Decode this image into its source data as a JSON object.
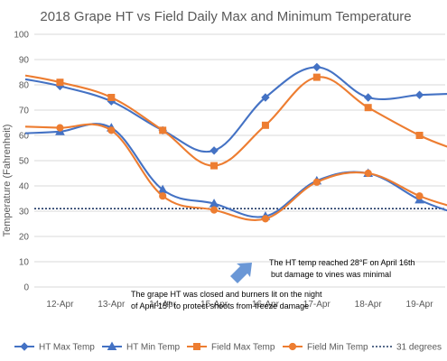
{
  "chart_data": {
    "type": "line",
    "title": "2018 Grape HT vs Field Daily Max and Minimum Temperature",
    "ylabel": "Temperature (Fahrenheit)",
    "xlabel": "",
    "ylim": [
      0,
      100
    ],
    "yticks": [
      0,
      10,
      20,
      30,
      40,
      50,
      60,
      70,
      80,
      90,
      100
    ],
    "grid": true,
    "legend": "bottom",
    "categories": [
      "12-Apr",
      "13-Apr",
      "14-Apr",
      "15-Apr",
      "16-Apr",
      "17-Apr",
      "18-Apr",
      "19-Apr"
    ],
    "series": [
      {
        "name": "HT Max Temp",
        "color": "#4472C4",
        "marker": "diamond",
        "values": [
          79.5,
          73.5,
          62,
          54,
          75,
          87,
          75,
          76
        ]
      },
      {
        "name": "HT Min Temp",
        "color": "#4472C4",
        "marker": "triangle",
        "values": [
          61.5,
          63,
          38.5,
          33,
          28,
          42,
          45,
          34.5
        ]
      },
      {
        "name": "Field Max Temp",
        "color": "#ED7D31",
        "marker": "square",
        "values": [
          81,
          75,
          62,
          48,
          64,
          83,
          71,
          60
        ]
      },
      {
        "name": "Field Min Temp",
        "color": "#ED7D31",
        "marker": "circle",
        "values": [
          63,
          62,
          36,
          30.5,
          27,
          41.5,
          45,
          36
        ]
      }
    ],
    "reference_line": {
      "name": "31 degrees",
      "value": 31,
      "color": "#1F3864"
    },
    "annotations": [
      {
        "id": "ht",
        "lines": [
          "The HT temp reached 28°F on April 16th",
          "but damage to vines was minimal"
        ]
      },
      {
        "id": "burners",
        "lines": [
          "The grape HT was closed and burners lit on the night",
          "of April 15",
          "th",
          " to protect shoots from freeze damage"
        ]
      }
    ]
  }
}
